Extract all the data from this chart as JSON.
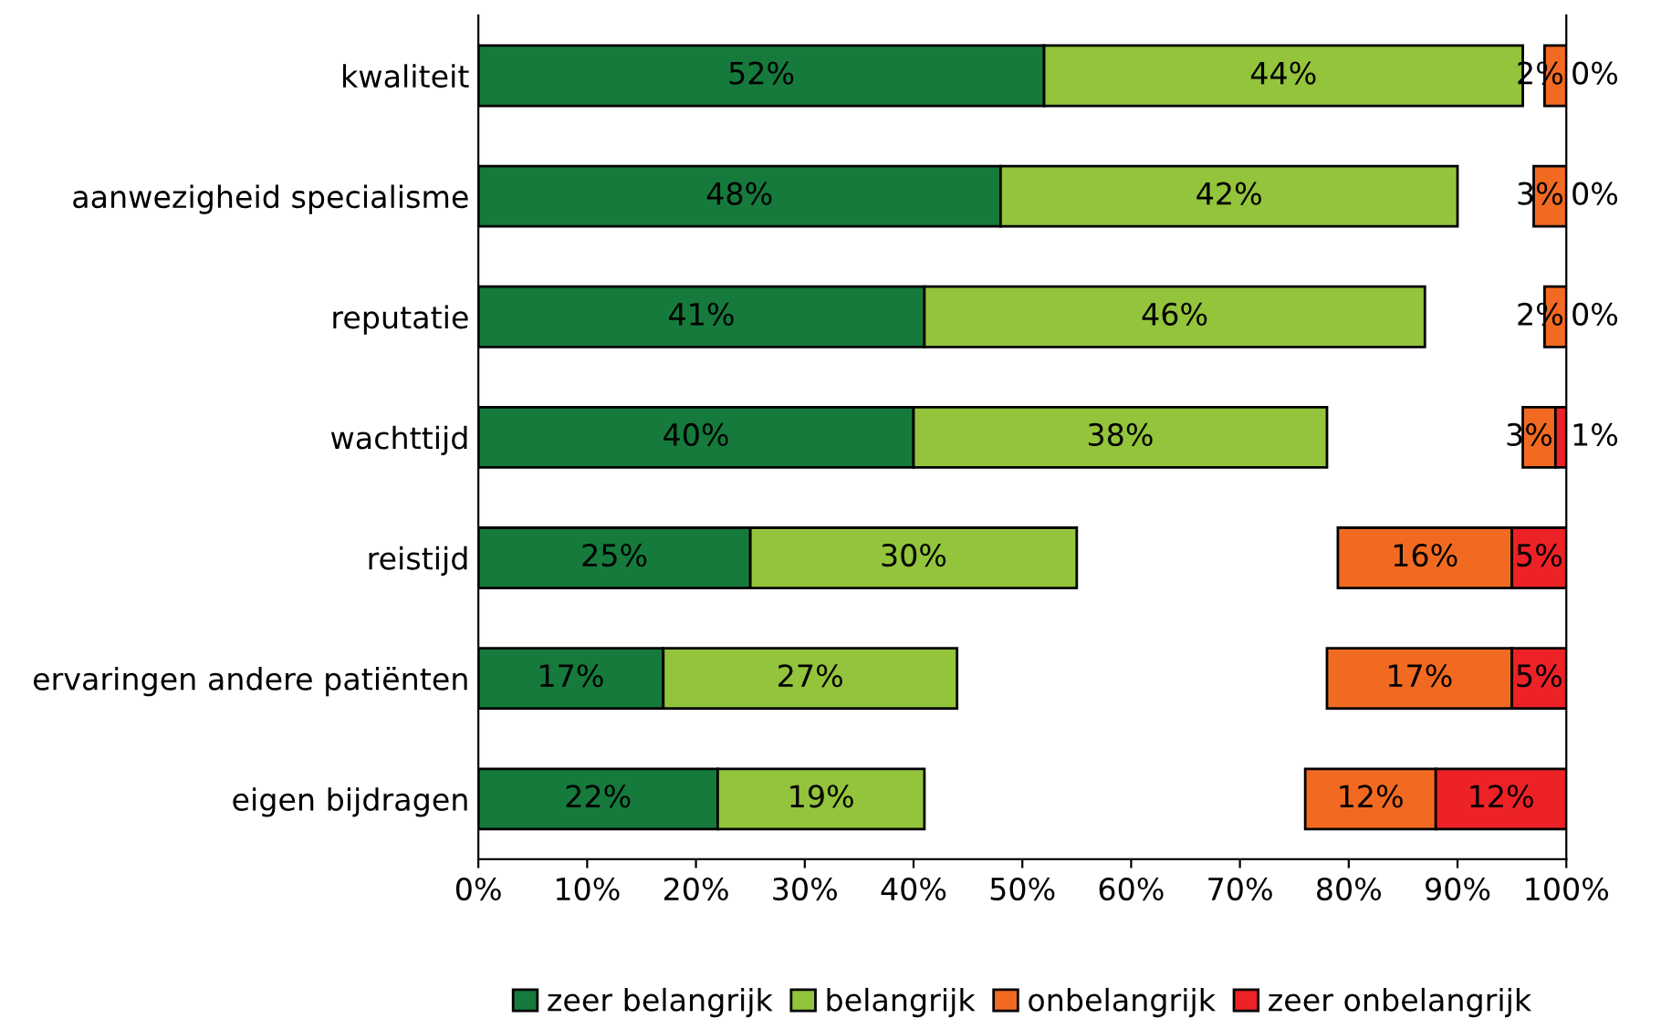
{
  "chart_data": {
    "type": "bar",
    "orientation": "horizontal",
    "categories": [
      "kwaliteit",
      "aanwezigheid specialisme",
      "reputatie",
      "wachttijd",
      "reistijd",
      "ervaringen andere patiënten",
      "eigen bijdragen"
    ],
    "series": [
      {
        "name": "zeer belangrijk",
        "color": "#157a3c",
        "values": [
          52,
          48,
          41,
          40,
          25,
          17,
          22
        ],
        "base": [
          0,
          0,
          0,
          0,
          0,
          0,
          0
        ],
        "value_labels": [
          "52%",
          "48%",
          "41%",
          "40%",
          "25%",
          "17%",
          "22%"
        ]
      },
      {
        "name": "belangrijk",
        "color": "#93c43c",
        "values": [
          44,
          42,
          46,
          38,
          30,
          27,
          19
        ],
        "base": [
          52,
          48,
          41,
          40,
          25,
          17,
          22
        ],
        "value_labels": [
          "44%",
          "42%",
          "46%",
          "38%",
          "30%",
          "27%",
          "19%"
        ]
      },
      {
        "name": "onbelangrijk",
        "color": "#f26a21",
        "values": [
          2,
          3,
          2,
          3,
          16,
          17,
          12
        ],
        "base": [
          98,
          97,
          98,
          96,
          79,
          78,
          76
        ],
        "value_labels": [
          "2%",
          "3%",
          "2%",
          "3%",
          "16%",
          "17%",
          "12%"
        ]
      },
      {
        "name": "zeer onbelangrijk",
        "color": "#ec2227",
        "values": [
          0,
          0,
          0,
          1,
          5,
          5,
          12
        ],
        "base": [
          100,
          100,
          100,
          99,
          95,
          95,
          88
        ],
        "value_labels": [
          "0%",
          "0%",
          "0%",
          "1%",
          "5%",
          "5%",
          "12%"
        ]
      }
    ],
    "xlim": [
      0,
      100
    ],
    "xticks": [
      {
        "value": 0,
        "label": "0%"
      },
      {
        "value": 10,
        "label": "10%"
      },
      {
        "value": 20,
        "label": "20%"
      },
      {
        "value": 30,
        "label": "30%"
      },
      {
        "value": 40,
        "label": "40%"
      },
      {
        "value": 50,
        "label": "50%"
      },
      {
        "value": 60,
        "label": "60%"
      },
      {
        "value": 70,
        "label": "70%"
      },
      {
        "value": 80,
        "label": "80%"
      },
      {
        "value": 90,
        "label": "90%"
      },
      {
        "value": 100,
        "label": "100%"
      }
    ],
    "grid": false,
    "legend": "bottom"
  }
}
